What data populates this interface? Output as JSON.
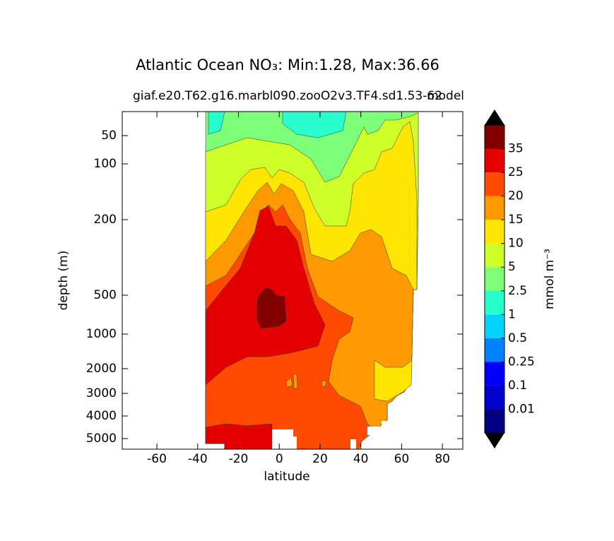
{
  "chart_data": {
    "type": "contour",
    "title": "Atlantic Ocean NO₃: Min:1.28, Max:36.66",
    "subtitle": "giaf.e20.T62.g16.marbl090.zooO2v3.TF4.sd1.53-62",
    "subtitle_right": "model",
    "xlabel": "latitude",
    "ylabel": "depth (m)",
    "xlim": [
      -77,
      90
    ],
    "xticks": [
      -60,
      -40,
      -20,
      0,
      20,
      40,
      60,
      80
    ],
    "ylim": [
      0,
      5500
    ],
    "yticks": [
      50,
      100,
      200,
      500,
      1000,
      2000,
      3000,
      4000,
      5000
    ],
    "y_inverted": true,
    "colorbar": {
      "label": "mmol m⁻³",
      "levels": [
        0.01,
        0.1,
        0.25,
        0.5,
        1,
        2.5,
        5,
        10,
        15,
        20,
        25,
        35
      ],
      "colors": [
        "#000080",
        "#0000cd",
        "#0000ff",
        "#0080ff",
        "#00d4ff",
        "#29ffce",
        "#7dff7a",
        "#ceff29",
        "#ffe500",
        "#ff9900",
        "#ff4a00",
        "#e40000",
        "#800000"
      ],
      "extend": "both"
    }
  }
}
